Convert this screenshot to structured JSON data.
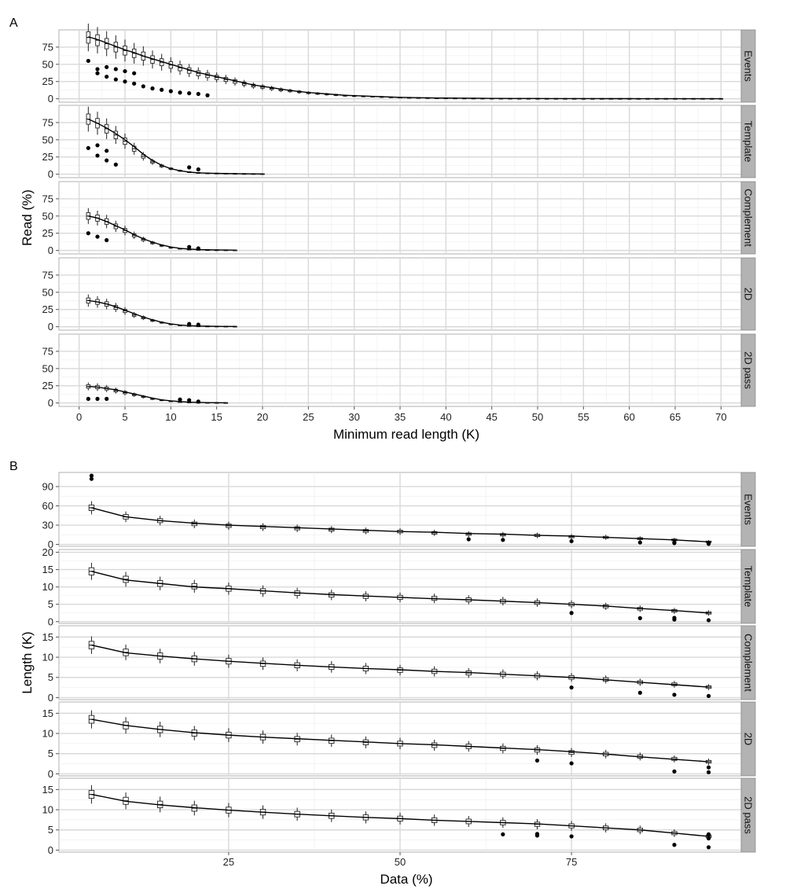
{
  "chart_data": [
    {
      "panel": "A",
      "type": "box",
      "xlabel": "Minimum read length (K)",
      "ylabel": "Read (%)",
      "xlim": [
        -2.2,
        72.2
      ],
      "ylim": [
        -5,
        100
      ],
      "x_ticks": [
        0,
        5,
        10,
        15,
        20,
        25,
        30,
        35,
        40,
        45,
        50,
        55,
        60,
        65,
        70
      ],
      "y_ticks": [
        0,
        25,
        50,
        75
      ],
      "grid": true,
      "facets": [
        {
          "name": "Events",
          "x": [
            1,
            2,
            3,
            4,
            5,
            6,
            7,
            8,
            9,
            10,
            11,
            12,
            13,
            14,
            15,
            16,
            17,
            18,
            19,
            20,
            21,
            22,
            23,
            24,
            25,
            26,
            27,
            28,
            29,
            30,
            31,
            32,
            33,
            34,
            35,
            36,
            37,
            38,
            39,
            40,
            41,
            42,
            43,
            44,
            45,
            46,
            47,
            48,
            49,
            50,
            51,
            52,
            53,
            54,
            55,
            56,
            57,
            58,
            59,
            60,
            61,
            62,
            63,
            64,
            65,
            66,
            67,
            68,
            69,
            70
          ],
          "median": [
            89,
            85,
            80,
            75,
            70,
            66,
            62,
            57,
            53,
            49,
            45,
            41,
            37,
            34,
            31,
            28,
            25,
            22,
            19,
            17,
            15,
            13,
            11.5,
            10,
            8.5,
            7.5,
            6.5,
            5.5,
            4.5,
            4,
            3.5,
            3,
            2.6,
            2.2,
            1.8,
            1.5,
            1.3,
            1.1,
            0.9,
            0.8,
            0.7,
            0.6,
            0.5,
            0.45,
            0.4,
            0.35,
            0.3,
            0.25,
            0.22,
            0.2,
            0.18,
            0.16,
            0.14,
            0.12,
            0.1,
            0.1,
            0.1,
            0.1,
            0.1,
            0.1,
            0.1,
            0.1,
            0.1,
            0.1,
            0.1,
            0.1,
            0.1,
            0.1,
            0.1,
            0.1
          ],
          "trend": [
            90,
            86,
            81,
            76,
            71,
            67,
            62,
            58,
            54,
            50,
            46,
            42,
            38,
            35,
            32,
            29,
            26,
            23,
            20,
            18,
            16,
            14,
            12,
            10.5,
            9,
            8,
            7,
            6,
            5,
            4.5,
            4,
            3.5,
            3,
            2.5,
            2,
            1.8,
            1.5,
            1.3,
            1.1,
            1,
            0.9,
            0.8,
            0.7,
            0.6,
            0.5,
            0.45,
            0.4,
            0.35,
            0.3,
            0.3,
            0.25,
            0.25,
            0.2,
            0.2,
            0.2,
            0.2,
            0.15,
            0.15,
            0.15,
            0.15,
            0.1,
            0.1,
            0.1,
            0.1,
            0.1,
            0.1,
            0.1,
            0.1,
            0.1,
            0.1
          ],
          "outliers": [
            [
              1,
              55
            ],
            [
              2,
              37
            ],
            [
              2,
              43
            ],
            [
              3,
              32
            ],
            [
              3,
              46
            ],
            [
              4,
              28
            ],
            [
              4,
              43
            ],
            [
              5,
              25
            ],
            [
              5,
              40
            ],
            [
              6,
              22
            ],
            [
              6,
              37
            ],
            [
              7,
              18
            ],
            [
              8,
              15
            ],
            [
              9,
              13
            ],
            [
              10,
              11
            ],
            [
              11,
              9
            ],
            [
              12,
              8
            ],
            [
              13,
              7
            ],
            [
              14,
              5
            ]
          ]
        },
        {
          "name": "Template",
          "x": [
            1,
            2,
            3,
            4,
            5,
            6,
            7,
            8,
            9,
            10,
            11,
            12,
            13,
            14,
            15,
            16,
            17,
            18,
            19,
            20
          ],
          "median": [
            80,
            74,
            66,
            57,
            48,
            37,
            26,
            18,
            12,
            8,
            5,
            3,
            2,
            1.5,
            1.2,
            1,
            0.8,
            0.6,
            0.5,
            0.4
          ],
          "trend": [
            80,
            74,
            67,
            59,
            50,
            40,
            29,
            20,
            13,
            8,
            5,
            3,
            2,
            1.5,
            1.2,
            1,
            0.8,
            0.6,
            0.5,
            0.4
          ],
          "outliers": [
            [
              1,
              38
            ],
            [
              2,
              27
            ],
            [
              2,
              42
            ],
            [
              3,
              20
            ],
            [
              3,
              34
            ],
            [
              4,
              14
            ],
            [
              12,
              10
            ],
            [
              13,
              7
            ]
          ]
        },
        {
          "name": "Complement",
          "x": [
            1,
            2,
            3,
            4,
            5,
            6,
            7,
            8,
            9,
            10,
            11,
            12,
            13,
            14,
            15,
            16,
            17
          ],
          "median": [
            50,
            47,
            42,
            35,
            29,
            22,
            16,
            11,
            7,
            4,
            2.5,
            1.5,
            1,
            0.8,
            0.6,
            0.5,
            0.4
          ],
          "trend": [
            50,
            47,
            42,
            36,
            30,
            23,
            17,
            12,
            8,
            5,
            3,
            2,
            1.3,
            1,
            0.8,
            0.6,
            0.5
          ],
          "outliers": [
            [
              1,
              25
            ],
            [
              2,
              20
            ],
            [
              3,
              15
            ],
            [
              12,
              5
            ],
            [
              13,
              3
            ]
          ]
        },
        {
          "name": "2D",
          "x": [
            1,
            2,
            3,
            4,
            5,
            6,
            7,
            8,
            9,
            10,
            11,
            12,
            13,
            14,
            15,
            16,
            17
          ],
          "median": [
            38,
            36,
            33,
            28,
            23,
            17,
            13,
            9,
            6,
            3.5,
            2,
            1.2,
            0.8,
            0.6,
            0.5,
            0.4,
            0.3
          ],
          "trend": [
            38,
            36,
            33,
            29,
            24,
            19,
            14,
            10,
            6.5,
            4,
            2.5,
            1.5,
            1,
            0.7,
            0.5,
            0.4,
            0.3
          ],
          "outliers": [
            [
              12,
              4
            ],
            [
              13,
              3
            ]
          ]
        },
        {
          "name": "2D pass",
          "x": [
            1,
            2,
            3,
            4,
            5,
            6,
            7,
            8,
            9,
            10,
            11,
            12,
            13,
            14,
            15,
            16
          ],
          "median": [
            24,
            23,
            21,
            18,
            15,
            12,
            9,
            6,
            4,
            2.5,
            1.5,
            1,
            0.6,
            0.4,
            0.3,
            0.2
          ],
          "trend": [
            24,
            23,
            21,
            19,
            16,
            13,
            10,
            7,
            4.5,
            3,
            2,
            1.2,
            0.8,
            0.5,
            0.3,
            0.2
          ],
          "outliers": [
            [
              1,
              6
            ],
            [
              2,
              6
            ],
            [
              3,
              6
            ],
            [
              11,
              5
            ],
            [
              12,
              4
            ],
            [
              13,
              2
            ]
          ]
        }
      ]
    },
    {
      "panel": "B",
      "type": "box",
      "xlabel": "Data (%)",
      "ylabel": "Length (K)",
      "xlim": [
        0.25,
        99.75
      ],
      "x_ticks": [
        25,
        50,
        75
      ],
      "grid": true,
      "x": [
        5,
        10,
        15,
        20,
        25,
        30,
        35,
        40,
        45,
        50,
        55,
        60,
        65,
        70,
        75,
        80,
        85,
        90,
        95
      ],
      "facets": [
        {
          "name": "Events",
          "ylim": [
            -3,
            112
          ],
          "y_ticks": [
            0,
            30,
            60,
            90
          ],
          "median": [
            57,
            43,
            37,
            32,
            29,
            27,
            25,
            23,
            21,
            20,
            18,
            16,
            15,
            14,
            12,
            11,
            9,
            7,
            4
          ],
          "trend": [
            57,
            43,
            37,
            33,
            30,
            28,
            26,
            24,
            22,
            20,
            19,
            17,
            16,
            14,
            13,
            11,
            9,
            7,
            4
          ],
          "outliers": [
            [
              5,
              102
            ],
            [
              5,
              107
            ],
            [
              60,
              8
            ],
            [
              65,
              7
            ],
            [
              75,
              5
            ],
            [
              85,
              3
            ],
            [
              90,
              2
            ],
            [
              90,
              3
            ],
            [
              95,
              1
            ],
            [
              95,
              2
            ]
          ]
        },
        {
          "name": "Template",
          "ylim": [
            -0.5,
            20.8
          ],
          "y_ticks": [
            0,
            5,
            10,
            15,
            20
          ],
          "median": [
            14.5,
            12.2,
            11,
            10.2,
            9.5,
            8.8,
            8.2,
            7.7,
            7.3,
            7,
            6.7,
            6.3,
            5.9,
            5.5,
            5,
            4.4,
            3.7,
            3.1,
            2.5
          ],
          "trend": [
            14.5,
            12,
            11,
            10,
            9.5,
            8.9,
            8.3,
            7.8,
            7.4,
            7,
            6.6,
            6.3,
            5.9,
            5.5,
            5,
            4.5,
            3.8,
            3.2,
            2.5
          ],
          "outliers": [
            [
              75,
              2.5
            ],
            [
              85,
              1
            ],
            [
              90,
              0.6
            ],
            [
              90,
              1.1
            ],
            [
              95,
              0.4
            ]
          ]
        },
        {
          "name": "Complement",
          "ylim": [
            -0.5,
            17.8
          ],
          "y_ticks": [
            0,
            5,
            10,
            15
          ],
          "median": [
            13,
            11.2,
            10.3,
            9.6,
            9,
            8.4,
            8,
            7.6,
            7.2,
            6.8,
            6.5,
            6.1,
            5.8,
            5.4,
            5,
            4.5,
            3.8,
            3.3,
            2.6
          ],
          "trend": [
            13,
            11.1,
            10.3,
            9.6,
            9,
            8.5,
            8,
            7.6,
            7.2,
            6.9,
            6.5,
            6.2,
            5.8,
            5.4,
            5,
            4.4,
            3.8,
            3.2,
            2.6
          ],
          "outliers": [
            [
              75,
              2.5
            ],
            [
              85,
              1.2
            ],
            [
              90,
              0.7
            ],
            [
              95,
              0.4
            ]
          ]
        },
        {
          "name": "2D",
          "ylim": [
            -0.5,
            17.8
          ],
          "y_ticks": [
            0,
            5,
            10,
            15
          ],
          "median": [
            13.5,
            12,
            11,
            10.1,
            9.6,
            9.1,
            8.6,
            8.2,
            7.8,
            7.5,
            7.1,
            6.8,
            6.3,
            5.9,
            5.3,
            4.9,
            4.3,
            3.7,
            3
          ],
          "trend": [
            13.5,
            12,
            11,
            10.2,
            9.6,
            9.1,
            8.7,
            8.3,
            7.9,
            7.5,
            7.2,
            6.8,
            6.4,
            6,
            5.5,
            4.9,
            4.2,
            3.6,
            3
          ],
          "outliers": [
            [
              70,
              3.3
            ],
            [
              75,
              2.6
            ],
            [
              90,
              0.6
            ],
            [
              95,
              0.4
            ],
            [
              95,
              1.6
            ]
          ]
        },
        {
          "name": "2D pass",
          "ylim": [
            -0.5,
            17.8
          ],
          "y_ticks": [
            0,
            5,
            10,
            15
          ],
          "median": [
            13.8,
            12.2,
            11.3,
            10.4,
            9.9,
            9.4,
            8.9,
            8.5,
            8.1,
            7.8,
            7.4,
            7.1,
            6.8,
            6.4,
            6,
            5.5,
            5,
            4.2,
            3.4
          ],
          "trend": [
            13.8,
            12.1,
            11.2,
            10.5,
            9.9,
            9.4,
            8.9,
            8.5,
            8.1,
            7.8,
            7.4,
            7.1,
            6.8,
            6.5,
            6,
            5.5,
            5,
            4.2,
            3.4
          ],
          "outliers": [
            [
              65,
              3.9
            ],
            [
              70,
              3.6
            ],
            [
              70,
              4
            ],
            [
              75,
              3.4
            ],
            [
              90,
              1.3
            ],
            [
              95,
              0.7
            ],
            [
              95,
              2.9
            ],
            [
              95,
              3.9
            ]
          ]
        }
      ]
    }
  ]
}
